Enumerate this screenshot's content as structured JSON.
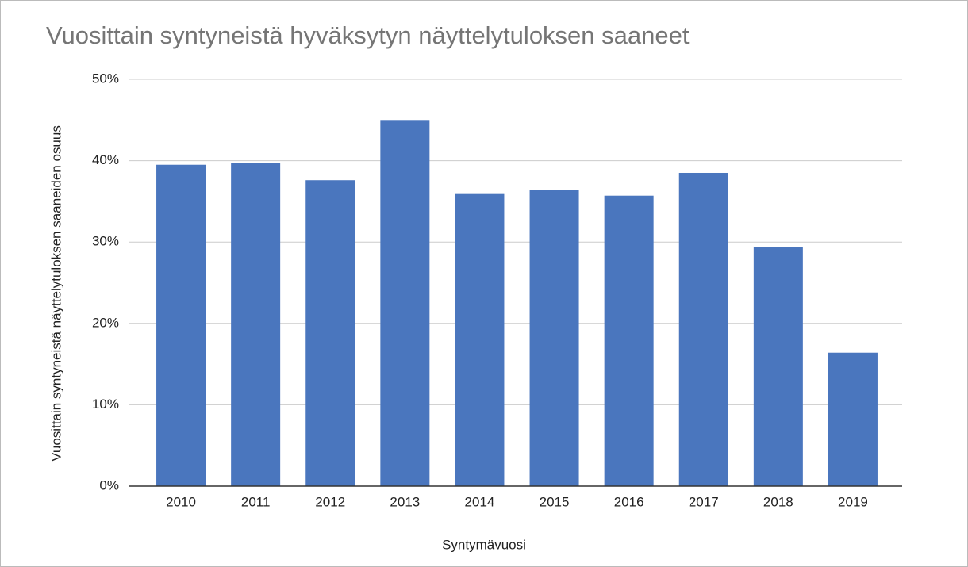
{
  "chart_data": {
    "type": "bar",
    "title": "Vuosittain syntyneistä hyväksytyn näyttelytuloksen saaneet",
    "x_label": "Syntymävuosi",
    "y_label": "Vuosittain syntyneistä näyttelytuloksen saaneiden osuus",
    "categories": [
      "2010",
      "2011",
      "2012",
      "2013",
      "2014",
      "2015",
      "2016",
      "2017",
      "2018",
      "2019"
    ],
    "values": [
      39.5,
      39.7,
      37.6,
      45.0,
      35.9,
      36.4,
      35.7,
      38.5,
      29.4,
      16.4
    ],
    "color": "#4a76be",
    "ylim": [
      0,
      50
    ],
    "yticks": [
      {
        "value": 0,
        "label": "0%"
      },
      {
        "value": 10,
        "label": "10%"
      },
      {
        "value": 20,
        "label": "20%"
      },
      {
        "value": 30,
        "label": "30%"
      },
      {
        "value": 40,
        "label": "40%"
      },
      {
        "value": 50,
        "label": "50%"
      }
    ],
    "grid": true
  }
}
